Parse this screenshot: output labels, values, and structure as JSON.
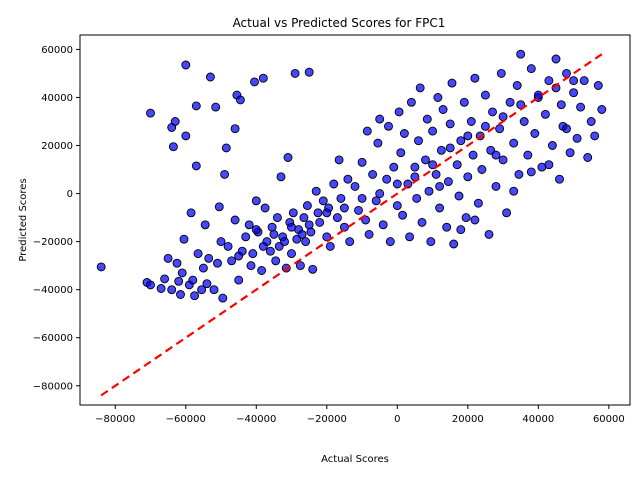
{
  "chart_data": {
    "type": "scatter",
    "title": "Actual vs Predicted Scores for FPC1",
    "xlabel": "Actual Scores",
    "ylabel": "Predicted Scores",
    "xlim": [
      -90000,
      66000
    ],
    "ylim": [
      -88000,
      66000
    ],
    "xticks": [
      -80000,
      -60000,
      -40000,
      -20000,
      0,
      20000,
      40000,
      60000
    ],
    "yticks": [
      -80000,
      -60000,
      -40000,
      -20000,
      0,
      20000,
      40000,
      60000
    ],
    "xtick_labels": [
      "−80000",
      "−60000",
      "−40000",
      "−20000",
      "0",
      "20000",
      "40000",
      "60000"
    ],
    "ytick_labels": [
      "−80000",
      "−60000",
      "−40000",
      "−20000",
      "0",
      "20000",
      "40000",
      "60000"
    ],
    "grid": false,
    "point_color": "#0000ff",
    "point_edge_color": "#000000",
    "line_color": "#ff0000",
    "reference_line": {
      "style": "dashed",
      "x": [
        -84000,
        58000
      ],
      "y": [
        -84000,
        58000
      ]
    },
    "series": [
      {
        "points": [
          [
            -84000,
            -30500
          ],
          [
            -71000,
            -37000
          ],
          [
            -70000,
            -38000
          ],
          [
            -70000,
            33500
          ],
          [
            -67000,
            -39500
          ],
          [
            -66000,
            -35500
          ],
          [
            -65000,
            -27000
          ],
          [
            -64000,
            -40000
          ],
          [
            -64000,
            27500
          ],
          [
            -63500,
            19500
          ],
          [
            -63000,
            30000
          ],
          [
            -62500,
            -29000
          ],
          [
            -62000,
            -36500
          ],
          [
            -61500,
            -42000
          ],
          [
            -61000,
            -33000
          ],
          [
            -60500,
            -19000
          ],
          [
            -60000,
            53500
          ],
          [
            -60000,
            24000
          ],
          [
            -59000,
            -38000
          ],
          [
            -58500,
            -8000
          ],
          [
            -58000,
            -36000
          ],
          [
            -57500,
            -42500
          ],
          [
            -57000,
            11500
          ],
          [
            -57000,
            36500
          ],
          [
            -56500,
            -25000
          ],
          [
            -55500,
            -40000
          ],
          [
            -55000,
            -31000
          ],
          [
            -54500,
            -13000
          ],
          [
            -54000,
            -37500
          ],
          [
            -53500,
            -27000
          ],
          [
            -53000,
            48500
          ],
          [
            -52000,
            -40000
          ],
          [
            -51500,
            36000
          ],
          [
            -51000,
            -29000
          ],
          [
            -50500,
            -5500
          ],
          [
            -50000,
            -20000
          ],
          [
            -49500,
            -43500
          ],
          [
            -49000,
            8000
          ],
          [
            -48500,
            19000
          ],
          [
            -48000,
            -22000
          ],
          [
            -47000,
            -28000
          ],
          [
            -46000,
            -11000
          ],
          [
            -46000,
            27000
          ],
          [
            -45500,
            41000
          ],
          [
            -45000,
            -36000
          ],
          [
            -44500,
            39000
          ],
          [
            -44000,
            -24000
          ],
          [
            -43000,
            -18000
          ],
          [
            -42000,
            -13000
          ],
          [
            -41500,
            -30000
          ],
          [
            -41000,
            -25000
          ],
          [
            -40500,
            46500
          ],
          [
            -40000,
            -3000
          ],
          [
            -39500,
            -16000
          ],
          [
            -38500,
            -32000
          ],
          [
            -38000,
            48000
          ],
          [
            -37500,
            -6000
          ],
          [
            -37000,
            -20000
          ],
          [
            -36000,
            -24000
          ],
          [
            -35500,
            -14000
          ],
          [
            -34500,
            -28000
          ],
          [
            -34000,
            -10000
          ],
          [
            -33500,
            -22000
          ],
          [
            -33000,
            7000
          ],
          [
            -32500,
            -18000
          ],
          [
            -31500,
            -31000
          ],
          [
            -31000,
            15000
          ],
          [
            -30500,
            -12000
          ],
          [
            -30000,
            -25000
          ],
          [
            -29500,
            -8000
          ],
          [
            -29000,
            50000
          ],
          [
            -28500,
            -19000
          ],
          [
            -28000,
            -15000
          ],
          [
            -27500,
            -30000
          ],
          [
            -26500,
            -10000
          ],
          [
            -26000,
            -20000
          ],
          [
            -25500,
            -5000
          ],
          [
            -25000,
            50500
          ],
          [
            -24500,
            -16000
          ],
          [
            -24000,
            -31500
          ],
          [
            -23000,
            1000
          ],
          [
            -22500,
            -8000
          ],
          [
            -22000,
            -12000
          ],
          [
            -21000,
            -3000
          ],
          [
            -20000,
            -18000
          ],
          [
            -19500,
            -6000
          ],
          [
            -19000,
            -22000
          ],
          [
            -18000,
            4000
          ],
          [
            -17000,
            -10000
          ],
          [
            -16500,
            14000
          ],
          [
            -16000,
            -2000
          ],
          [
            -15000,
            -14000
          ],
          [
            -14000,
            6000
          ],
          [
            -13500,
            -20000
          ],
          [
            -12000,
            3000
          ],
          [
            -11000,
            -7000
          ],
          [
            -10000,
            13000
          ],
          [
            -9000,
            -11000
          ],
          [
            -8500,
            26000
          ],
          [
            -8000,
            -17000
          ],
          [
            -7000,
            8000
          ],
          [
            -6000,
            -3000
          ],
          [
            -5500,
            21000
          ],
          [
            -5000,
            31000
          ],
          [
            -4000,
            -13000
          ],
          [
            -3000,
            6000
          ],
          [
            -2500,
            28000
          ],
          [
            -2000,
            -20000
          ],
          [
            -1000,
            11000
          ],
          [
            0,
            -5000
          ],
          [
            500,
            34000
          ],
          [
            1000,
            17000
          ],
          [
            1500,
            -9000
          ],
          [
            2000,
            25000
          ],
          [
            3000,
            4000
          ],
          [
            3500,
            -18000
          ],
          [
            4000,
            38000
          ],
          [
            5000,
            11000
          ],
          [
            5500,
            -2000
          ],
          [
            6000,
            22000
          ],
          [
            6500,
            44000
          ],
          [
            7000,
            -12000
          ],
          [
            8000,
            14000
          ],
          [
            8500,
            31000
          ],
          [
            9000,
            1000
          ],
          [
            9500,
            -20000
          ],
          [
            10000,
            26000
          ],
          [
            11000,
            8000
          ],
          [
            11500,
            40000
          ],
          [
            12000,
            -6000
          ],
          [
            12500,
            18000
          ],
          [
            13000,
            35000
          ],
          [
            14000,
            -14000
          ],
          [
            14500,
            5000
          ],
          [
            15000,
            29000
          ],
          [
            15500,
            46000
          ],
          [
            16000,
            -21000
          ],
          [
            17000,
            12000
          ],
          [
            17500,
            -1000
          ],
          [
            18000,
            22000
          ],
          [
            19000,
            38000
          ],
          [
            19500,
            -10000
          ],
          [
            20000,
            7000
          ],
          [
            21000,
            30000
          ],
          [
            21500,
            16000
          ],
          [
            22000,
            48000
          ],
          [
            23000,
            -4000
          ],
          [
            23500,
            24000
          ],
          [
            24000,
            10000
          ],
          [
            25000,
            41000
          ],
          [
            26000,
            -17000
          ],
          [
            26500,
            18000
          ],
          [
            27000,
            34000
          ],
          [
            28000,
            3000
          ],
          [
            29000,
            27000
          ],
          [
            29500,
            50000
          ],
          [
            30000,
            14000
          ],
          [
            31000,
            -8000
          ],
          [
            32000,
            38000
          ],
          [
            33000,
            21000
          ],
          [
            34000,
            45000
          ],
          [
            34500,
            8000
          ],
          [
            35000,
            58000
          ],
          [
            36000,
            30000
          ],
          [
            37000,
            16000
          ],
          [
            38000,
            52000
          ],
          [
            39000,
            25000
          ],
          [
            40000,
            40000
          ],
          [
            41000,
            11000
          ],
          [
            42000,
            33000
          ],
          [
            43000,
            47000
          ],
          [
            44000,
            20000
          ],
          [
            45000,
            56000
          ],
          [
            46000,
            6000
          ],
          [
            46500,
            37000
          ],
          [
            47000,
            28000
          ],
          [
            48000,
            50000
          ],
          [
            49000,
            17000
          ],
          [
            50000,
            42000
          ],
          [
            51000,
            23000
          ],
          [
            52000,
            36000
          ],
          [
            53000,
            47000
          ],
          [
            54000,
            15000
          ],
          [
            55000,
            30000
          ],
          [
            56000,
            24000
          ],
          [
            57000,
            45000
          ],
          [
            58000,
            35000
          ],
          [
            -40000,
            -15000
          ],
          [
            -35000,
            -17000
          ],
          [
            -30000,
            -14000
          ],
          [
            -25000,
            -13000
          ],
          [
            -20000,
            -8000
          ],
          [
            -15000,
            -6000
          ],
          [
            -10000,
            -2000
          ],
          [
            -5000,
            0
          ],
          [
            0,
            4000
          ],
          [
            5000,
            7000
          ],
          [
            10000,
            12000
          ],
          [
            15000,
            19000
          ],
          [
            20000,
            24000
          ],
          [
            25000,
            28000
          ],
          [
            30000,
            32000
          ],
          [
            35000,
            37000
          ],
          [
            40000,
            41000
          ],
          [
            45000,
            44000
          ],
          [
            50000,
            47000
          ],
          [
            -45000,
            -26000
          ],
          [
            -38000,
            -22000
          ],
          [
            -32000,
            -20000
          ],
          [
            -27000,
            -17000
          ],
          [
            12000,
            3000
          ],
          [
            18000,
            -15000
          ],
          [
            22000,
            -11000
          ],
          [
            28000,
            16000
          ],
          [
            33000,
            1000
          ],
          [
            38000,
            9000
          ],
          [
            43000,
            12000
          ],
          [
            48000,
            27000
          ]
        ]
      }
    ]
  }
}
